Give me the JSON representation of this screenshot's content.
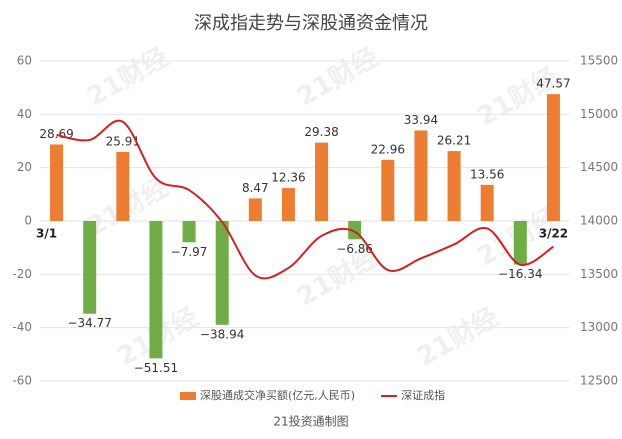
{
  "chart_data": {
    "type": "bar-line",
    "title": "深成指走势与深股通资金情况",
    "source": "21投资通制图",
    "watermark": "21财经",
    "categories": [
      "3/1",
      null,
      null,
      null,
      null,
      null,
      null,
      null,
      null,
      null,
      null,
      null,
      null,
      null,
      null,
      "3/22"
    ],
    "series": [
      {
        "name": "深股通成交净买额(亿元,人民币)",
        "type": "bar",
        "color": "#ed7d31",
        "negative_color": "#70ad47",
        "values": [
          28.69,
          -34.77,
          25.91,
          -51.51,
          -7.97,
          -38.94,
          8.47,
          12.36,
          29.38,
          -6.86,
          22.96,
          33.94,
          26.21,
          13.56,
          -16.34,
          47.57
        ],
        "value_labels": [
          "28.69",
          "−34.77",
          "25.91",
          "−51.51",
          "−7.97",
          "−38.94",
          "8.47",
          "12.36",
          "29.38",
          "−6.86",
          "22.96",
          "33.94",
          "26.21",
          "13.56",
          "−16.34",
          "47.57"
        ]
      },
      {
        "name": "深证成指",
        "type": "line",
        "color": "#d42020",
        "axis": "y2",
        "values": [
          14806,
          14760,
          14930,
          14400,
          14290,
          13990,
          13490,
          13560,
          13860,
          13900,
          13540,
          13650,
          13780,
          13930,
          13590,
          13760
        ]
      }
    ],
    "ylim": [
      -60,
      60
    ],
    "yticks": [
      -60,
      -40,
      -20,
      0,
      20,
      40,
      60
    ],
    "y2lim": [
      12500,
      15500
    ],
    "y2ticks": [
      12500,
      13000,
      13500,
      14000,
      14500,
      15000,
      15500
    ],
    "grid": true,
    "legend": "bottom"
  }
}
